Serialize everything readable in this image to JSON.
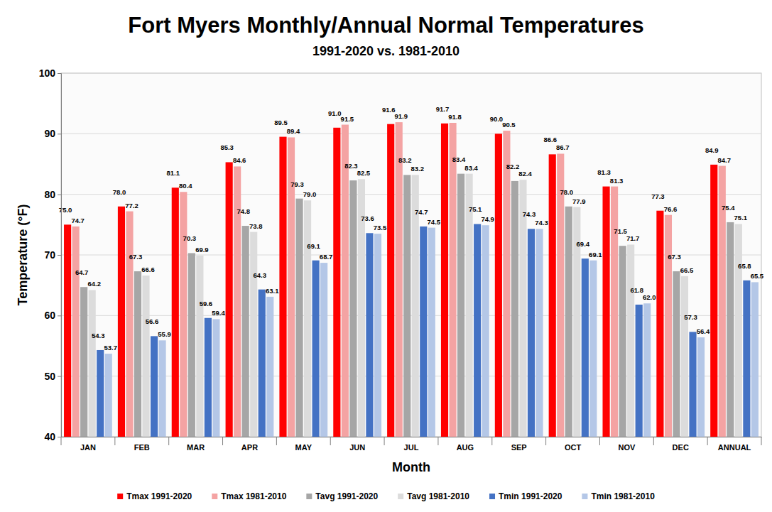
{
  "chart_data": {
    "type": "bar",
    "title": "Fort Myers Monthly/Annual Normal Temperatures",
    "subtitle": "1991-2020 vs. 1981-2010",
    "x_label": "Month",
    "y_label": "Temperature (°F)",
    "categories": [
      "JAN",
      "FEB",
      "MAR",
      "APR",
      "MAY",
      "JUN",
      "JUL",
      "AUG",
      "SEP",
      "OCT",
      "NOV",
      "DEC",
      "ANNUAL"
    ],
    "series": [
      {
        "name": "Tmax 1991-2020",
        "color": "#ff0000",
        "values": [
          75.0,
          78.0,
          81.1,
          85.3,
          89.5,
          91.0,
          91.6,
          91.7,
          90.0,
          86.6,
          81.3,
          77.3,
          84.9
        ],
        "value_labels": [
          "75.0",
          "78.0",
          "81.1",
          "85.3",
          "89.5",
          "91.0",
          "91.6",
          "91.7",
          "90.0",
          "86.6",
          "81.3",
          "77.3",
          "84.9"
        ]
      },
      {
        "name": "Tmax 1981-2010",
        "color": "#f4a3a3",
        "values": [
          74.7,
          77.2,
          80.4,
          84.6,
          89.4,
          91.5,
          91.9,
          91.8,
          90.5,
          86.7,
          81.3,
          76.6,
          84.7
        ],
        "value_labels": [
          "74.7",
          "77.2",
          "80.4",
          "84.6",
          "89.4",
          "91.5",
          "91.9",
          "91.8",
          "90.5",
          "86.7",
          "81.3",
          "76.6",
          "84.7"
        ]
      },
      {
        "name": "Tavg 1991-2020",
        "color": "#a6a6a6",
        "values": [
          64.7,
          67.3,
          70.3,
          74.8,
          79.3,
          82.3,
          83.2,
          83.4,
          82.2,
          78.0,
          71.5,
          67.3,
          75.4
        ],
        "value_labels": [
          "64.7",
          "67.3",
          "70.3",
          "74.8",
          "79.3",
          "82.3",
          "83.2",
          "83.4",
          "82.2",
          "78.0",
          "71.5",
          "67.3",
          "75.4"
        ]
      },
      {
        "name": "Tavg 1981-2010",
        "color": "#dcdcdc",
        "values": [
          64.2,
          66.6,
          69.9,
          73.8,
          79.0,
          82.5,
          83.2,
          83.4,
          82.4,
          77.9,
          71.7,
          66.5,
          75.1
        ],
        "value_labels": [
          "64.2",
          "66.6",
          "69.9",
          "73.8",
          "79.0",
          "82.5",
          "83.2",
          "83.4",
          "82.4",
          "77.9",
          "71.7",
          "66.5",
          "75.1"
        ]
      },
      {
        "name": "Tmin 1991-2020",
        "color": "#4472c4",
        "values": [
          54.3,
          56.6,
          59.6,
          64.3,
          69.1,
          73.6,
          74.7,
          75.1,
          74.3,
          69.4,
          61.8,
          57.3,
          65.8
        ],
        "value_labels": [
          "54.3",
          "56.6",
          "59.6",
          "64.3",
          "69.1",
          "73.6",
          "74.7",
          "75.1",
          "74.3",
          "69.4",
          "61.8",
          "57.3",
          "65.8"
        ]
      },
      {
        "name": "Tmin 1981-2010",
        "color": "#b4c7e7",
        "values": [
          53.7,
          55.9,
          59.4,
          63.1,
          68.7,
          73.5,
          74.5,
          74.9,
          74.3,
          69.1,
          62.0,
          56.4,
          65.5
        ],
        "value_labels": [
          "53.7",
          "55.9",
          "59.4",
          "63.1",
          "68.7",
          "73.5",
          "74.5",
          "74.9",
          "74.3",
          "69.1",
          "62.0",
          "56.4",
          "65.5"
        ]
      }
    ],
    "ylim": [
      40,
      100
    ],
    "yticks": [
      40,
      50,
      60,
      70,
      80,
      90,
      100
    ],
    "grid": true,
    "legend": "bottom",
    "data_labels": true
  }
}
